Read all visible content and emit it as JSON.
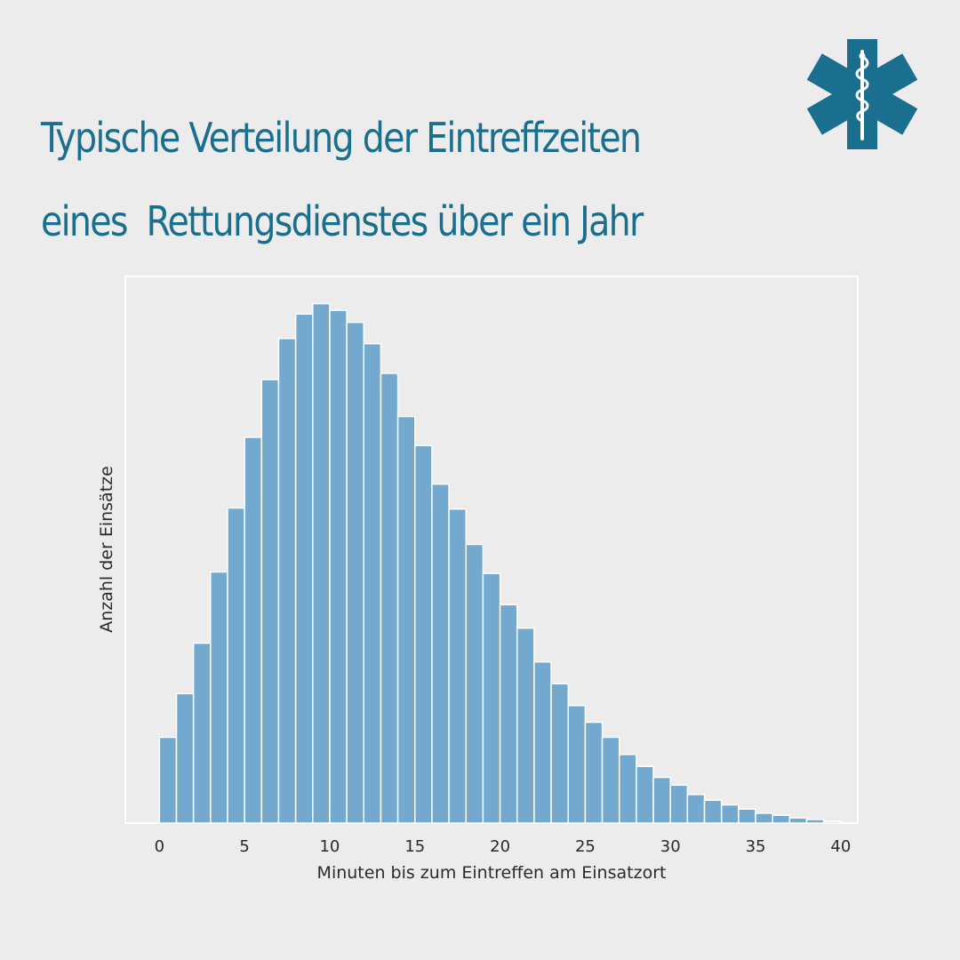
{
  "title": {
    "line1": "Typische Verteilung der Eintreffzeiten",
    "line2": "eines  Rettungsdienstes über ein Jahr"
  },
  "logo": {
    "icon": "star-of-life-icon",
    "color": "#1a6f8e"
  },
  "colors": {
    "background": "#ececec",
    "title": "#1a6f8e",
    "bar_fill": "#74a9cf",
    "bar_stroke": "#ffffff",
    "plot_frame": "#ffffff"
  },
  "chart_data": {
    "type": "bar",
    "title": "",
    "xlabel": "Minuten bis zum Eintreffen am Einsatzort",
    "ylabel": "Anzahl der Einsätze",
    "xlim": [
      -2,
      41
    ],
    "ylim": [
      0,
      100
    ],
    "xticks": [
      0,
      5,
      10,
      15,
      20,
      25,
      30,
      35,
      40
    ],
    "bin_width": 1,
    "bin_starts": [
      0,
      1,
      2,
      3,
      4,
      5,
      6,
      7,
      8,
      9,
      10,
      11,
      12,
      13,
      14,
      15,
      16,
      17,
      18,
      19,
      20,
      21,
      22,
      23,
      24,
      25,
      26,
      27,
      28,
      29,
      30,
      31,
      32,
      33,
      34,
      35,
      36,
      37,
      38,
      39
    ],
    "values": [
      16.5,
      24.9,
      34.6,
      48.3,
      60.6,
      74.2,
      85.3,
      93.2,
      97.9,
      99.9,
      98.6,
      96.3,
      92.2,
      86.5,
      78.2,
      72.6,
      65.2,
      60.4,
      53.6,
      48.0,
      42.0,
      37.5,
      31.0,
      26.8,
      22.6,
      19.4,
      16.5,
      13.2,
      10.9,
      8.8,
      7.3,
      5.5,
      4.4,
      3.5,
      2.7,
      1.9,
      1.5,
      1.0,
      0.7,
      0.3
    ],
    "grid": false,
    "legend": "none"
  }
}
